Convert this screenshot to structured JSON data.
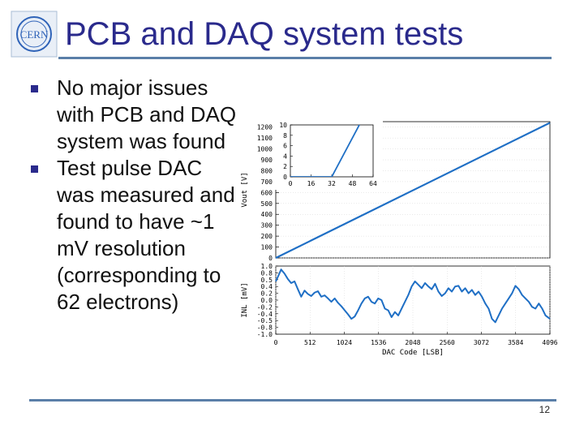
{
  "slide": {
    "title": "PCB and DAQ system tests",
    "logo_text": "CERN",
    "page_number": "12",
    "bullets": [
      {
        "text": "No major issues with PCB and DAQ system was found"
      },
      {
        "text": "Test pulse DAC was measured and found to have ~1 mV resolution (corresponding to 62 electrons)"
      }
    ]
  },
  "colors": {
    "accent": "#2a2a8c",
    "rule": "#5a7fa8",
    "series": "#1f6fc5"
  },
  "chart_data": [
    {
      "type": "line",
      "ylabel": "Vout [V]",
      "xlim": [
        0,
        4096
      ],
      "ylim": [
        0,
        1250
      ],
      "yticks": [
        0,
        100,
        200,
        300,
        400,
        500,
        600,
        700,
        800,
        900,
        1000,
        1100,
        1200
      ],
      "series": [
        {
          "x": [
            0,
            4096
          ],
          "y": [
            0,
            1240
          ]
        }
      ]
    },
    {
      "type": "line",
      "role": "inset",
      "xlim": [
        0,
        64
      ],
      "ylim": [
        0,
        10
      ],
      "xticks": [
        0,
        16,
        32,
        48,
        64
      ],
      "yticks": [
        0,
        2,
        4,
        6,
        8,
        10
      ],
      "series": [
        {
          "x": [
            0,
            32,
            64
          ],
          "y": [
            0,
            0,
            15
          ]
        }
      ]
    },
    {
      "type": "line",
      "xlabel": "DAC Code [LSB]",
      "ylabel": "INL [mV]",
      "xlim": [
        0,
        4096
      ],
      "ylim": [
        -1,
        1
      ],
      "xticks": [
        0,
        512,
        1024,
        1536,
        2048,
        2560,
        3072,
        3584,
        4096
      ],
      "ytick_labels": [
        "1.0",
        "0.8",
        "0.5",
        "0.4",
        "0.2",
        "0.0",
        "-0.2",
        "-0.4",
        "-0.5",
        "-0.8",
        "-1.0"
      ],
      "series": [
        {
          "x": [
            0,
            40,
            80,
            130,
            180,
            230,
            280,
            330,
            380,
            430,
            480,
            530,
            580,
            630,
            680,
            730,
            780,
            830,
            880,
            930,
            980,
            1030,
            1080,
            1130,
            1180,
            1230,
            1280,
            1330,
            1380,
            1430,
            1480,
            1530,
            1580,
            1630,
            1680,
            1730,
            1780,
            1830,
            1880,
            1930,
            1980,
            2030,
            2080,
            2130,
            2180,
            2230,
            2280,
            2330,
            2380,
            2430,
            2480,
            2530,
            2580,
            2630,
            2680,
            2730,
            2780,
            2830,
            2880,
            2930,
            2980,
            3030,
            3080,
            3130,
            3180,
            3230,
            3280,
            3330,
            3380,
            3430,
            3480,
            3530,
            3580,
            3630,
            3680,
            3730,
            3780,
            3830,
            3880,
            3930,
            3980,
            4030,
            4096
          ],
          "y": [
            0.55,
            0.72,
            0.9,
            0.78,
            0.62,
            0.5,
            0.55,
            0.32,
            0.1,
            0.28,
            0.18,
            0.12,
            0.22,
            0.26,
            0.1,
            0.14,
            0.05,
            -0.05,
            0.05,
            -0.08,
            -0.18,
            -0.3,
            -0.42,
            -0.55,
            -0.48,
            -0.3,
            -0.1,
            0.05,
            0.1,
            -0.05,
            -0.1,
            0.05,
            0.0,
            -0.25,
            -0.3,
            -0.5,
            -0.35,
            -0.45,
            -0.25,
            -0.05,
            0.15,
            0.4,
            0.55,
            0.45,
            0.35,
            0.5,
            0.4,
            0.32,
            0.48,
            0.25,
            0.12,
            0.2,
            0.35,
            0.25,
            0.4,
            0.42,
            0.25,
            0.35,
            0.2,
            0.3,
            0.15,
            0.25,
            0.1,
            -0.1,
            -0.25,
            -0.55,
            -0.65,
            -0.45,
            -0.25,
            -0.1,
            0.05,
            0.2,
            0.42,
            0.32,
            0.15,
            0.05,
            -0.05,
            -0.2,
            -0.25,
            -0.1,
            -0.25,
            -0.45,
            -0.55
          ]
        }
      ]
    }
  ]
}
